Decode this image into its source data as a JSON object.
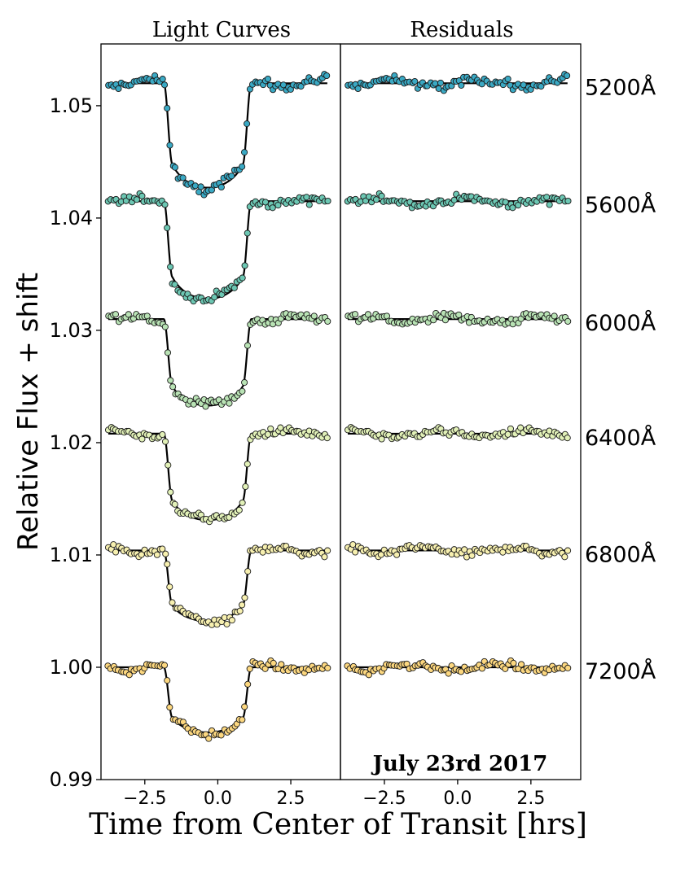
{
  "chart_data": {
    "type": "scatter",
    "panels": [
      {
        "title": "Light Curves"
      },
      {
        "title": "Residuals"
      }
    ],
    "xlabel": "Time from Center of Transit [hrs]",
    "ylabel": "Relative Flux + shift",
    "xlim": [
      -4.0,
      4.2
    ],
    "ylim": [
      0.99,
      1.0555
    ],
    "x_ticks": [
      -2.5,
      0.0,
      2.5
    ],
    "x_tick_labels": [
      "−2.5",
      "0.0",
      "2.5"
    ],
    "y_ticks": [
      0.99,
      1.0,
      1.01,
      1.02,
      1.03,
      1.04,
      1.05
    ],
    "y_tick_labels": [
      "0.99",
      "1.00",
      "1.01",
      "1.02",
      "1.03",
      "1.04",
      "1.05"
    ],
    "annotation": "July 23rd 2017",
    "transit_model": {
      "ingress_start": -1.85,
      "full_start": -1.55,
      "full_end": 0.85,
      "egress_end": 1.15,
      "limb_curvature": 0.4
    },
    "series": [
      {
        "name": "5200Å",
        "color": "#3aa9c4",
        "baseline": 1.052,
        "depth": 0.0093,
        "scatter": 0.00055
      },
      {
        "name": "5600Å",
        "color": "#6cc7b3",
        "baseline": 1.0415,
        "depth": 0.0087,
        "scatter": 0.00045
      },
      {
        "name": "6000Å",
        "color": "#b9e3b5",
        "baseline": 1.031,
        "depth": 0.0077,
        "scatter": 0.0005
      },
      {
        "name": "6400Å",
        "color": "#e2f1b8",
        "baseline": 1.0208,
        "depth": 0.0077,
        "scatter": 0.00045
      },
      {
        "name": "6800Å",
        "color": "#f7f0b0",
        "baseline": 1.0104,
        "depth": 0.0063,
        "scatter": 0.00045
      },
      {
        "name": "7200Å",
        "color": "#fcd77f",
        "baseline": 1.0,
        "depth": 0.0058,
        "scatter": 0.00045
      }
    ]
  }
}
